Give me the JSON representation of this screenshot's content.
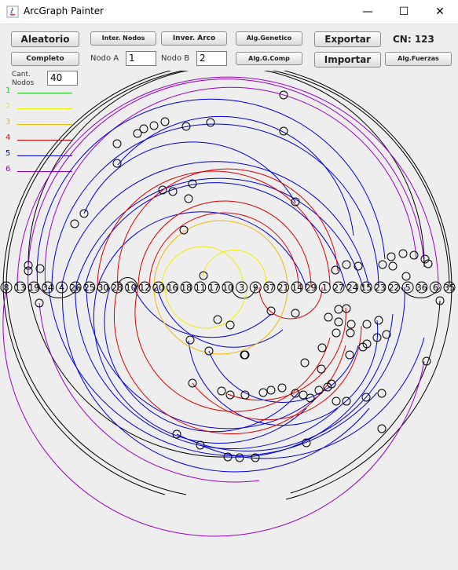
{
  "window": {
    "title": "ArcGraph Painter",
    "minimize": "—",
    "maximize": "☐",
    "close": "✕"
  },
  "toolbar": {
    "aleatorio": "Aleatorio",
    "completo": "Completo",
    "inter_nodos": "Inter. Nodos",
    "inver_arco": "Inver. Arco",
    "alg_genetico": "Alg.Genetico",
    "alg_g_comp": "Alg.G.Comp",
    "exportar": "Exportar",
    "importar": "Importar",
    "alg_fuerzas": "Alg.Fuerzas",
    "cn_label": "CN: 123",
    "nodo_a_label": "Nodo A",
    "nodo_a_value": "1",
    "nodo_b_label": "Nodo B",
    "nodo_b_value": "2",
    "cant_label_1": "Cant.",
    "cant_label_2": "Nodos",
    "cant_value": "40"
  },
  "legend": [
    {
      "label": "1",
      "color": "#22cc22"
    },
    {
      "label": "2",
      "color": "#eeee00"
    },
    {
      "label": "3",
      "color": "#eebb00"
    },
    {
      "label": "4",
      "color": "#dd0000"
    },
    {
      "label": "5",
      "color": "#0000dd"
    },
    {
      "label": "6",
      "color": "#9900cc"
    }
  ],
  "node_labels": [
    "8",
    "13",
    "19",
    "34",
    "4",
    "26",
    "25",
    "30",
    "28",
    "10",
    "12",
    "20",
    "16",
    "18",
    "11",
    "17",
    "10",
    "3",
    "9",
    "37",
    "21",
    "14",
    "29",
    "1",
    "27",
    "24",
    "15",
    "23",
    "22",
    "5",
    "36",
    "6",
    "35"
  ]
}
